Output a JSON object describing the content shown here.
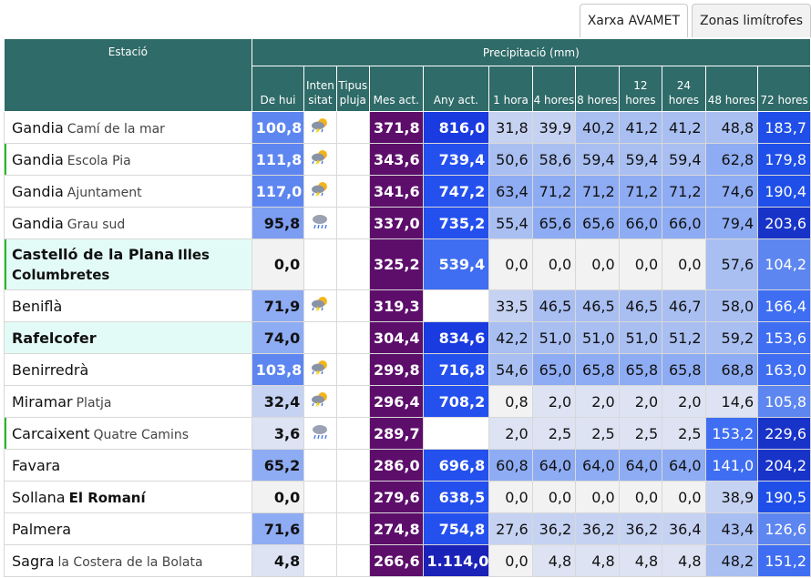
{
  "tabs": [
    {
      "label": "Xarxa AVAMET",
      "active": true
    },
    {
      "label": "Zonas limítrofes",
      "active": false
    }
  ],
  "header": {
    "station": "Estació",
    "precip": "Precipitació (mm)",
    "cols": [
      "De hui",
      "Inten sitat",
      "Tipus pluja",
      "Mes act.",
      "Any act.",
      "1 hora",
      "4 hores",
      "8 hores",
      "12 hores",
      "24 hores",
      "48 hores",
      "72 hores"
    ]
  },
  "rows": [
    {
      "main": "Gandia",
      "sub": "Camí de la mar",
      "sub_bold": false,
      "main_bold": false,
      "highlight": false,
      "indicator": false,
      "today": "100,8",
      "icon": "storm-icon",
      "mes": "371,8",
      "any": "816,0",
      "h1": "31,8",
      "h4": "39,9",
      "h8": "40,2",
      "h12": "41,2",
      "h24": "41,2",
      "h48": "48,8",
      "h72": "183,7"
    },
    {
      "main": "Gandia",
      "sub": "Escola Pia",
      "sub_bold": false,
      "main_bold": false,
      "highlight": false,
      "indicator": true,
      "today": "111,8",
      "icon": "storm-icon",
      "mes": "343,6",
      "any": "739,4",
      "h1": "50,6",
      "h4": "58,6",
      "h8": "59,4",
      "h12": "59,4",
      "h24": "59,4",
      "h48": "62,8",
      "h72": "179,8"
    },
    {
      "main": "Gandia",
      "sub": "Ajuntament",
      "sub_bold": false,
      "main_bold": false,
      "highlight": false,
      "indicator": false,
      "today": "117,0",
      "icon": "storm-icon",
      "mes": "341,6",
      "any": "747,2",
      "h1": "63,4",
      "h4": "71,2",
      "h8": "71,2",
      "h12": "71,2",
      "h24": "71,2",
      "h48": "74,6",
      "h72": "190,4"
    },
    {
      "main": "Gandia",
      "sub": "Grau sud",
      "sub_bold": false,
      "main_bold": false,
      "highlight": false,
      "indicator": false,
      "today": "95,8",
      "icon": "rain-icon",
      "mes": "337,0",
      "any": "735,2",
      "h1": "55,4",
      "h4": "65,6",
      "h8": "65,6",
      "h12": "66,0",
      "h24": "66,0",
      "h48": "79,4",
      "h72": "203,6"
    },
    {
      "main": "Castelló de la Plana",
      "sub": "Illes Columbretes",
      "sub_bold": true,
      "main_bold": true,
      "highlight": true,
      "indicator": true,
      "tall": true,
      "today": "0,0",
      "icon": "",
      "mes": "325,2",
      "any": "539,4",
      "h1": "0,0",
      "h4": "0,0",
      "h8": "0,0",
      "h12": "0,0",
      "h24": "0,0",
      "h48": "57,6",
      "h72": "104,2"
    },
    {
      "main": "Beniflà",
      "sub": "",
      "sub_bold": false,
      "main_bold": false,
      "highlight": false,
      "indicator": false,
      "today": "71,9",
      "icon": "storm-icon",
      "mes": "319,3",
      "any": "",
      "h1": "33,5",
      "h4": "46,5",
      "h8": "46,5",
      "h12": "46,5",
      "h24": "46,7",
      "h48": "58,0",
      "h72": "166,4"
    },
    {
      "main": "Rafelcofer",
      "sub": "",
      "sub_bold": false,
      "main_bold": true,
      "highlight": true,
      "indicator": false,
      "today": "74,0",
      "icon": "",
      "mes": "304,4",
      "any": "834,6",
      "h1": "42,2",
      "h4": "51,0",
      "h8": "51,0",
      "h12": "51,0",
      "h24": "51,2",
      "h48": "59,2",
      "h72": "153,6"
    },
    {
      "main": "Benirredrà",
      "sub": "",
      "sub_bold": false,
      "main_bold": false,
      "highlight": false,
      "indicator": false,
      "today": "103,8",
      "icon": "storm-icon",
      "mes": "299,8",
      "any": "716,8",
      "h1": "54,6",
      "h4": "65,0",
      "h8": "65,8",
      "h12": "65,8",
      "h24": "65,8",
      "h48": "68,8",
      "h72": "163,0"
    },
    {
      "main": "Miramar",
      "sub": "Platja",
      "sub_bold": false,
      "main_bold": false,
      "highlight": false,
      "indicator": false,
      "today": "32,4",
      "icon": "storm-icon",
      "mes": "296,4",
      "any": "708,2",
      "h1": "0,8",
      "h4": "2,0",
      "h8": "2,0",
      "h12": "2,0",
      "h24": "2,0",
      "h48": "14,6",
      "h72": "105,8"
    },
    {
      "main": "Carcaixent",
      "sub": "Quatre Camins",
      "sub_bold": false,
      "main_bold": false,
      "highlight": false,
      "indicator": true,
      "today": "3,6",
      "icon": "rain-icon",
      "mes": "289,7",
      "any": "",
      "h1": "2,0",
      "h4": "2,5",
      "h8": "2,5",
      "h12": "2,5",
      "h24": "2,5",
      "h48": "153,2",
      "h72": "229,6"
    },
    {
      "main": "Favara",
      "sub": "",
      "sub_bold": false,
      "main_bold": false,
      "highlight": false,
      "indicator": false,
      "today": "65,2",
      "icon": "",
      "mes": "286,0",
      "any": "696,8",
      "h1": "60,8",
      "h4": "64,0",
      "h8": "64,0",
      "h12": "64,0",
      "h24": "64,0",
      "h48": "141,0",
      "h72": "204,2"
    },
    {
      "main": "Sollana",
      "sub": "El Romaní",
      "sub_bold": true,
      "main_bold": false,
      "highlight": false,
      "indicator": false,
      "today": "0,0",
      "icon": "",
      "mes": "279,6",
      "any": "638,5",
      "h1": "0,0",
      "h4": "0,0",
      "h8": "0,0",
      "h12": "0,0",
      "h24": "0,0",
      "h48": "38,9",
      "h72": "190,5"
    },
    {
      "main": "Palmera",
      "sub": "",
      "sub_bold": false,
      "main_bold": false,
      "highlight": false,
      "indicator": false,
      "today": "71,6",
      "icon": "",
      "mes": "274,8",
      "any": "754,8",
      "h1": "27,6",
      "h4": "36,2",
      "h8": "36,2",
      "h12": "36,2",
      "h24": "36,4",
      "h48": "43,4",
      "h72": "126,6"
    },
    {
      "main": "Sagra",
      "sub": "la Costera de la Bolata",
      "sub_bold": false,
      "main_bold": false,
      "highlight": false,
      "indicator": false,
      "today": "4,8",
      "icon": "",
      "mes": "266,6",
      "any": "1.114,0",
      "h1": "0,0",
      "h4": "4,8",
      "h8": "4,8",
      "h12": "4,8",
      "h24": "4,8",
      "h48": "48,2",
      "h72": "151,2"
    }
  ],
  "colors": {
    "header": "#2f6b68",
    "month": "#5d0e6b",
    "highlight": "#e3fbf6",
    "indicator": "#22bb22"
  }
}
